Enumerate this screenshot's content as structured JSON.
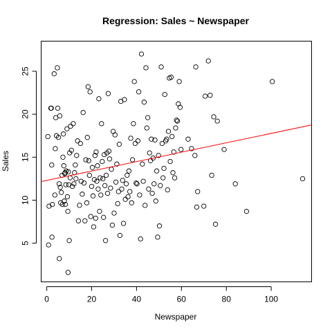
{
  "chart_data": {
    "type": "scatter",
    "title": "Regression: Sales ~ Newspaper",
    "xlabel": "Newspaper",
    "ylabel": "Sales",
    "xlim": [
      -2.5,
      118
    ],
    "ylim": [
      0.5,
      28.5
    ],
    "xticks": [
      0,
      20,
      40,
      60,
      80,
      100
    ],
    "yticks": [
      5,
      10,
      15,
      20,
      25
    ],
    "grid": false,
    "point_style": "open-circle",
    "point_color": "#000000",
    "fit_line": {
      "color": "#ff0000",
      "intercept": 12.3,
      "slope": 0.0547
    },
    "points": [
      [
        0.5,
        17.4
      ],
      [
        0.8,
        4.8
      ],
      [
        1.0,
        9.3
      ],
      [
        1.8,
        20.7
      ],
      [
        2.0,
        20.7
      ],
      [
        2.2,
        14.1
      ],
      [
        2.3,
        5.7
      ],
      [
        2.5,
        9.5
      ],
      [
        3.3,
        24.7
      ],
      [
        3.6,
        10.6
      ],
      [
        3.8,
        16.0
      ],
      [
        4.0,
        19.6
      ],
      [
        4.3,
        17.5
      ],
      [
        4.7,
        25.4
      ],
      [
        4.9,
        20.7
      ],
      [
        5.2,
        17.3
      ],
      [
        5.5,
        11.9
      ],
      [
        5.6,
        3.2
      ],
      [
        5.8,
        19.8
      ],
      [
        6.0,
        11.5
      ],
      [
        6.2,
        9.7
      ],
      [
        6.5,
        10.9
      ],
      [
        6.8,
        12.9
      ],
      [
        7.0,
        9.5
      ],
      [
        7.2,
        15.0
      ],
      [
        7.4,
        17.7
      ],
      [
        7.6,
        14.0
      ],
      [
        7.8,
        9.9
      ],
      [
        8.0,
        13.1
      ],
      [
        8.2,
        13.2
      ],
      [
        8.3,
        9.5
      ],
      [
        8.5,
        11.8
      ],
      [
        8.7,
        13.4
      ],
      [
        9.0,
        18.3
      ],
      [
        9.2,
        10.4
      ],
      [
        9.4,
        8.7
      ],
      [
        9.5,
        1.6
      ],
      [
        9.6,
        13.3
      ],
      [
        9.8,
        11.8
      ],
      [
        10.0,
        5.3
      ],
      [
        10.2,
        15.5
      ],
      [
        10.4,
        12.6
      ],
      [
        10.6,
        18.6
      ],
      [
        11.0,
        15.8
      ],
      [
        11.4,
        11.6
      ],
      [
        11.8,
        18.9
      ],
      [
        12.1,
        11.9
      ],
      [
        12.4,
        13.2
      ],
      [
        12.7,
        14.1
      ],
      [
        13.0,
        12.5
      ],
      [
        13.3,
        15.2
      ],
      [
        13.7,
        16.9
      ],
      [
        14.1,
        7.6
      ],
      [
        14.6,
        9.4
      ],
      [
        15.0,
        16.6
      ],
      [
        15.3,
        12.2
      ],
      [
        15.8,
        10.7
      ],
      [
        16.2,
        20.2
      ],
      [
        16.6,
        12.0
      ],
      [
        17.0,
        7.6
      ],
      [
        17.4,
        14.7
      ],
      [
        17.8,
        9.7
      ],
      [
        18.1,
        17.3
      ],
      [
        18.4,
        23.2
      ],
      [
        18.7,
        14.6
      ],
      [
        19.0,
        12.9
      ],
      [
        19.3,
        22.6
      ],
      [
        19.6,
        8.1
      ],
      [
        20.0,
        11.6
      ],
      [
        20.3,
        13.8
      ],
      [
        20.6,
        10.5
      ],
      [
        20.9,
        6.9
      ],
      [
        21.2,
        12.4
      ],
      [
        21.5,
        15.2
      ],
      [
        21.8,
        7.9
      ],
      [
        22.0,
        15.6
      ],
      [
        22.3,
        12.2
      ],
      [
        22.6,
        14.0
      ],
      [
        22.9,
        11.3
      ],
      [
        23.2,
        21.8
      ],
      [
        23.5,
        8.7
      ],
      [
        23.8,
        12.6
      ],
      [
        24.1,
        10.6
      ],
      [
        24.4,
        18.9
      ],
      [
        24.7,
        14.5
      ],
      [
        25.0,
        12.5
      ],
      [
        25.3,
        8.0
      ],
      [
        25.6,
        15.3
      ],
      [
        25.9,
        11.7
      ],
      [
        26.2,
        5.3
      ],
      [
        26.5,
        12.9
      ],
      [
        26.8,
        15.5
      ],
      [
        27.1,
        10.8
      ],
      [
        27.4,
        22.4
      ],
      [
        27.7,
        15.7
      ],
      [
        28.0,
        14.8
      ],
      [
        28.4,
        11.4
      ],
      [
        28.8,
        13.6
      ],
      [
        29.2,
        7.1
      ],
      [
        29.6,
        18.0
      ],
      [
        30.0,
        8.5
      ],
      [
        30.4,
        17.6
      ],
      [
        30.8,
        12.1
      ],
      [
        31.2,
        14.2
      ],
      [
        31.6,
        9.6
      ],
      [
        32.0,
        11.0
      ],
      [
        32.3,
        16.5
      ],
      [
        32.6,
        5.9
      ],
      [
        33.0,
        21.5
      ],
      [
        33.4,
        11.3
      ],
      [
        33.8,
        12.3
      ],
      [
        34.2,
        7.3
      ],
      [
        34.6,
        21.7
      ],
      [
        35.0,
        10.1
      ],
      [
        35.4,
        11.9
      ],
      [
        35.8,
        12.9
      ],
      [
        36.2,
        10.4
      ],
      [
        36.6,
        13.4
      ],
      [
        37.0,
        11.0
      ],
      [
        37.4,
        17.2
      ],
      [
        37.8,
        9.7
      ],
      [
        38.2,
        14.7
      ],
      [
        38.6,
        18.9
      ],
      [
        39.0,
        23.8
      ],
      [
        39.4,
        16.6
      ],
      [
        39.8,
        12.0
      ],
      [
        40.2,
        11.9
      ],
      [
        40.6,
        16.9
      ],
      [
        41.0,
        22.6
      ],
      [
        41.4,
        10.6
      ],
      [
        41.8,
        5.5
      ],
      [
        42.2,
        27.0
      ],
      [
        42.6,
        14.2
      ],
      [
        43.0,
        12.2
      ],
      [
        43.4,
        21.4
      ],
      [
        43.8,
        9.4
      ],
      [
        44.2,
        25.4
      ],
      [
        44.6,
        18.4
      ],
      [
        45.0,
        19.6
      ],
      [
        45.4,
        11.3
      ],
      [
        45.8,
        15.5
      ],
      [
        46.2,
        14.6
      ],
      [
        46.6,
        17.1
      ],
      [
        47.0,
        10.8
      ],
      [
        47.4,
        14.9
      ],
      [
        47.8,
        11.9
      ],
      [
        48.2,
        17.0
      ],
      [
        48.6,
        9.9
      ],
      [
        49.0,
        13.4
      ],
      [
        49.4,
        5.7
      ],
      [
        49.8,
        15.2
      ],
      [
        50.2,
        7.0
      ],
      [
        50.6,
        11.7
      ],
      [
        51.0,
        25.5
      ],
      [
        51.4,
        16.6
      ],
      [
        51.8,
        12.6
      ],
      [
        52.2,
        13.7
      ],
      [
        52.6,
        22.3
      ],
      [
        53.0,
        16.9
      ],
      [
        53.4,
        17.1
      ],
      [
        53.8,
        11.2
      ],
      [
        54.2,
        18.0
      ],
      [
        54.6,
        24.2
      ],
      [
        55.0,
        14.5
      ],
      [
        55.4,
        24.3
      ],
      [
        55.8,
        17.4
      ],
      [
        56.2,
        13.2
      ],
      [
        56.6,
        15.6
      ],
      [
        57.0,
        12.6
      ],
      [
        57.4,
        18.4
      ],
      [
        57.8,
        19.3
      ],
      [
        58.2,
        19.2
      ],
      [
        58.6,
        21.2
      ],
      [
        59.0,
        23.8
      ],
      [
        59.4,
        20.8
      ],
      [
        59.8,
        15.9
      ],
      [
        63.0,
        17.1
      ],
      [
        64.5,
        16.0
      ],
      [
        66.0,
        15.2
      ],
      [
        66.4,
        25.5
      ],
      [
        66.8,
        9.2
      ],
      [
        67.2,
        11.0
      ],
      [
        70.0,
        9.3
      ],
      [
        70.6,
        22.1
      ],
      [
        72.0,
        26.2
      ],
      [
        72.8,
        22.2
      ],
      [
        73.5,
        12.9
      ],
      [
        74.4,
        19.7
      ],
      [
        75.2,
        7.2
      ],
      [
        76.0,
        19.2
      ],
      [
        79.0,
        15.9
      ],
      [
        84.0,
        11.9
      ],
      [
        89.0,
        8.7
      ],
      [
        100.5,
        23.8
      ],
      [
        114.0,
        12.5
      ]
    ]
  }
}
